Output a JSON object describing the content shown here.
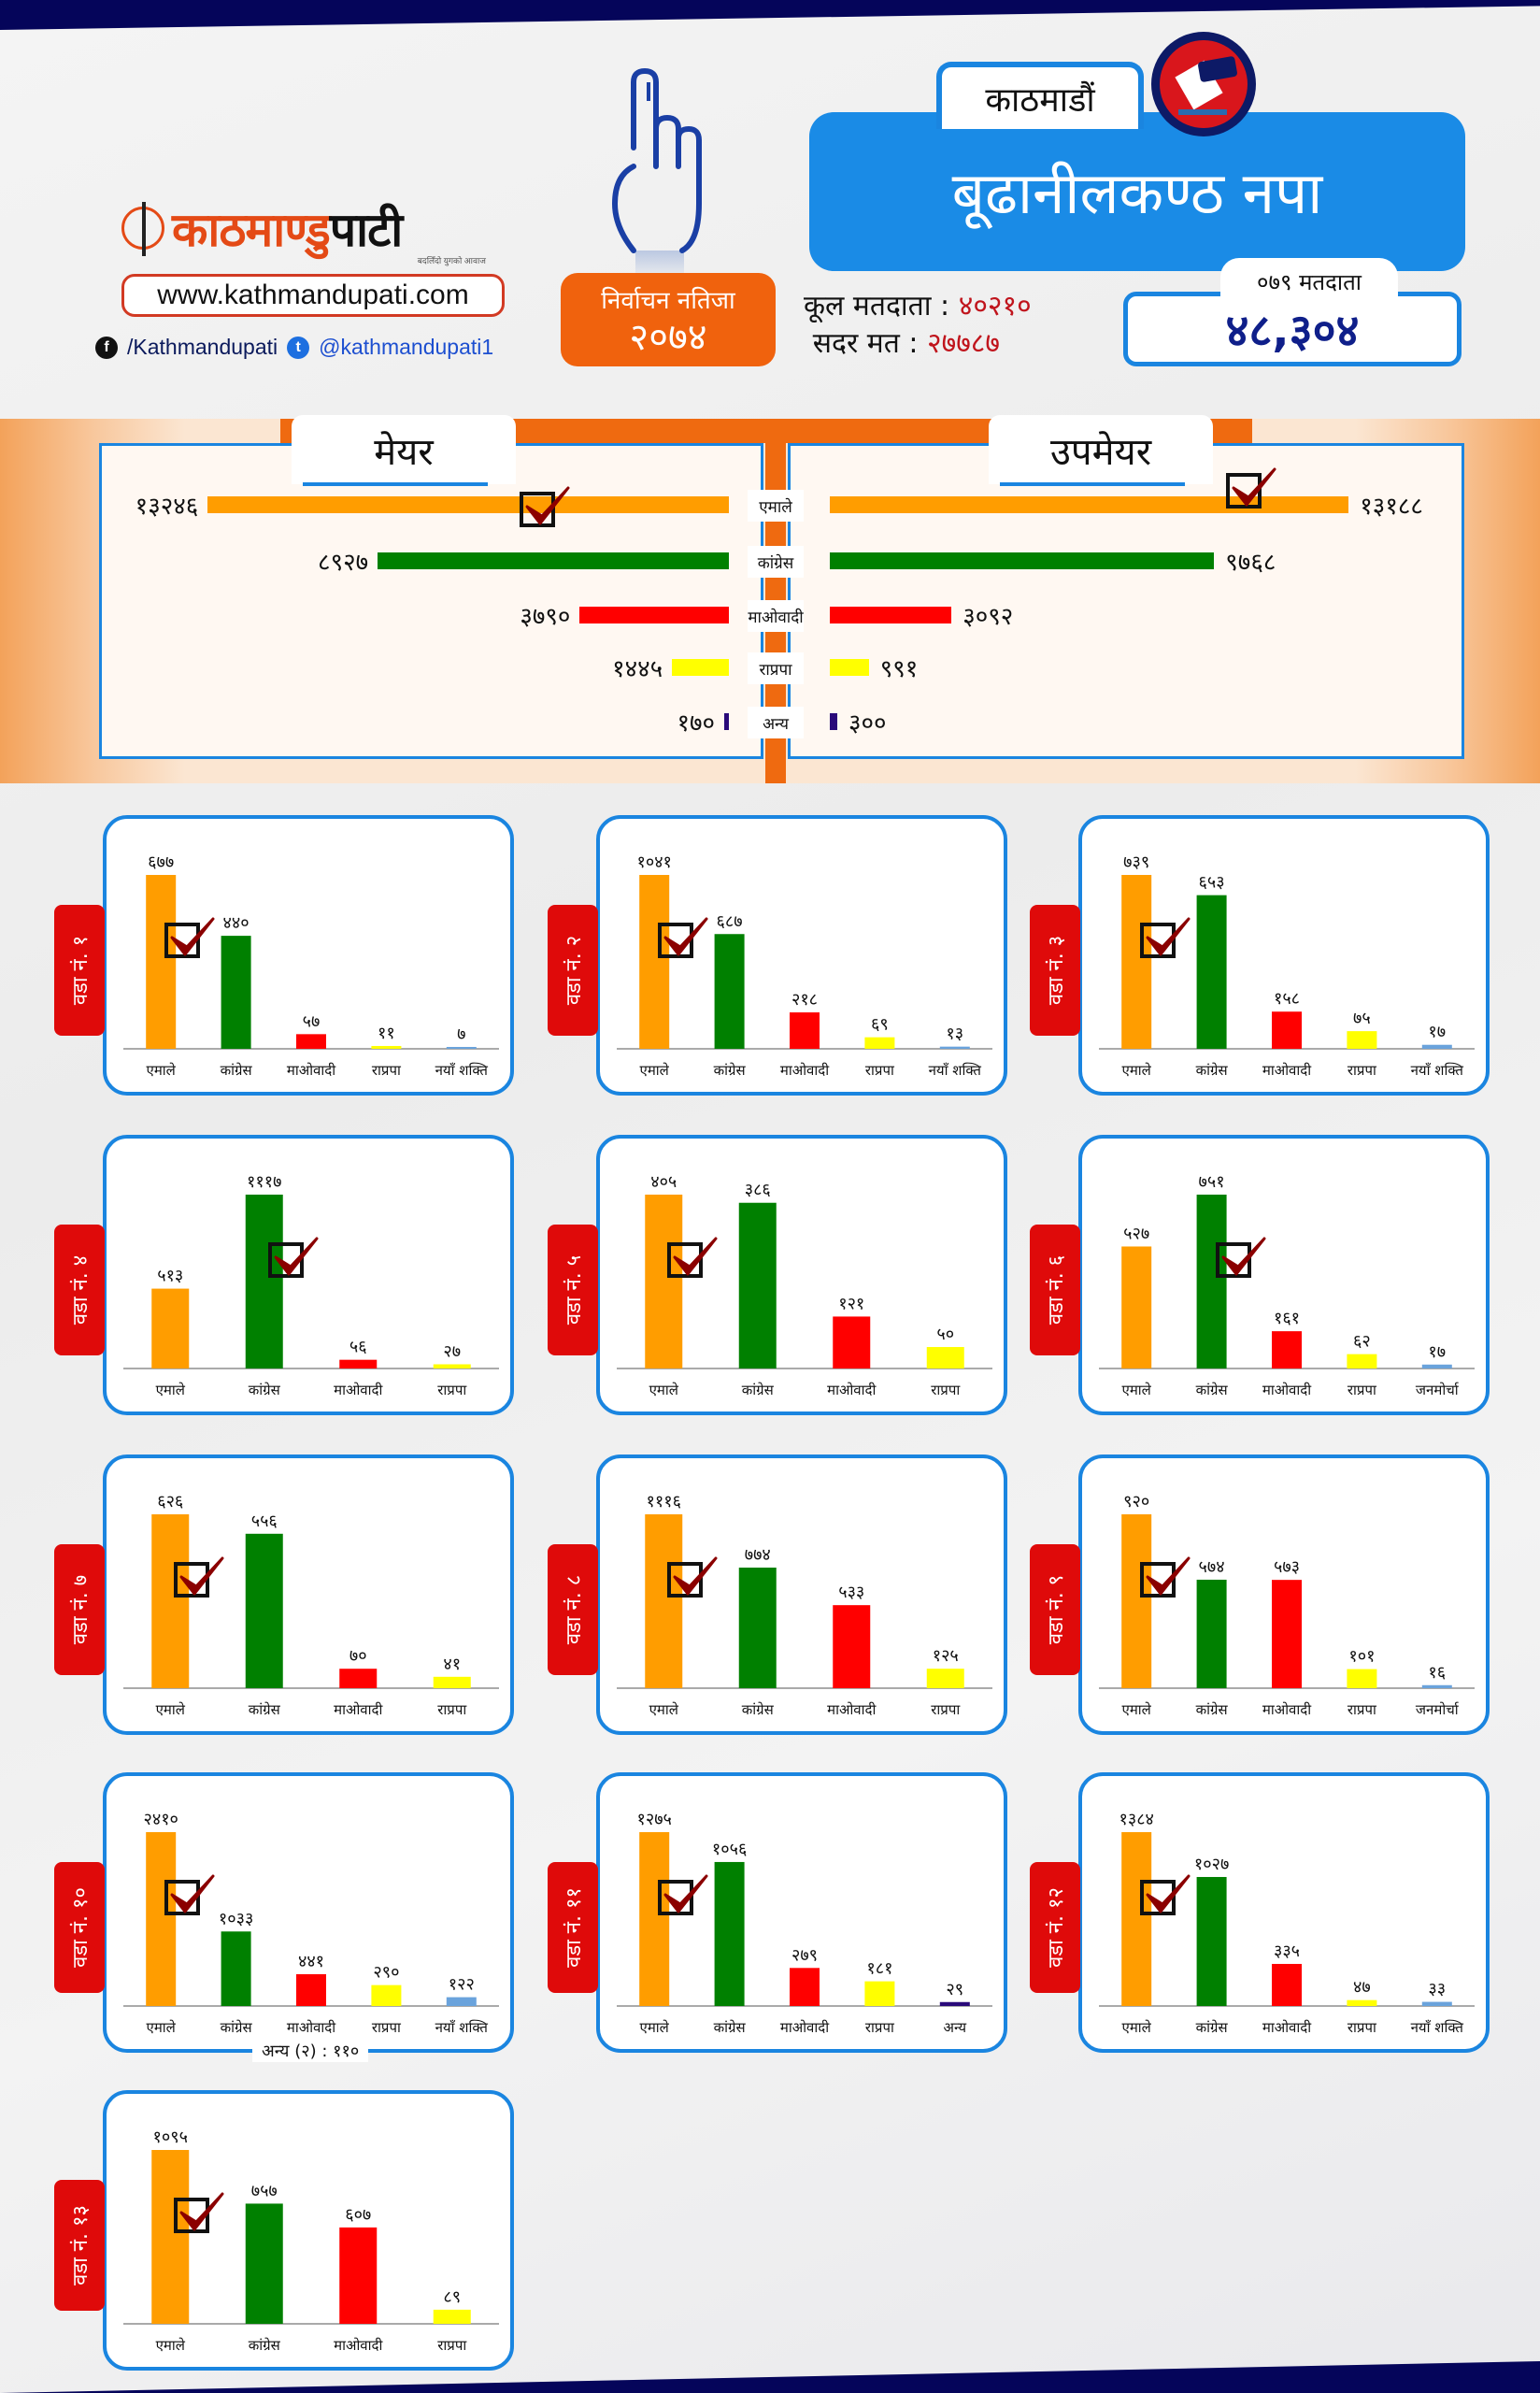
{
  "header": {
    "brand": {
      "name_part1": "काठमाण्डु",
      "name_part2": "पाटी",
      "tagline": "बदलिँदो युगको आवाज",
      "website": "www.kathmandupati.com"
    },
    "socials": {
      "facebook": "/Kathmandupati",
      "twitter": "@kathmandupati1"
    },
    "result_badge": {
      "line1": "निर्वाचन नतिजा",
      "line2": "२०७४"
    },
    "district": "काठमाडौं",
    "municipality": "बूढानीलकण्ठ नपा",
    "total_voters_label": "कूल मतदाता :",
    "total_voters_value": "४०२१०",
    "valid_votes_label": "सदर मत :",
    "valid_votes_value": "२७७८७",
    "voters_079_label": "०७९ मतदाता",
    "voters_079_value": "४८,३०४"
  },
  "colors": {
    "एमाले": "#ff9d00",
    "कांग्रेस": "#008000",
    "माओवादी": "#ff0000",
    "राप्रपा": "#ffff00",
    "नयाँ शक्ति": "#6aa3dc",
    "जनमोर्चा": "#6aa3dc",
    "अन्य": "#2a0a7a",
    "accent_blue": "#1a85e0",
    "accent_orange": "#ef6a10",
    "ward_tag_red": "#df0a0a",
    "check_red": "#8b0000"
  },
  "chart_data": [
    {
      "type": "bar",
      "title": "मेयर",
      "orientation": "horizontal",
      "categories": [
        "एमाले",
        "कांग्रेस",
        "माओवादी",
        "राप्रपा",
        "अन्य"
      ],
      "values": [
        13246,
        8927,
        3790,
        1445,
        170
      ],
      "labels": [
        "१३२४६",
        "८९२७",
        "३७९०",
        "१४४५",
        "१७०"
      ],
      "winner": "एमाले"
    },
    {
      "type": "bar",
      "title": "उपमेयर",
      "orientation": "horizontal",
      "categories": [
        "एमाले",
        "कांग्रेस",
        "माओवादी",
        "राप्रपा",
        "अन्य"
      ],
      "values": [
        13188,
        9768,
        3092,
        991,
        300
      ],
      "labels": [
        "१३१८८",
        "९७६८",
        "३०९२",
        "९९१",
        "३००"
      ],
      "winner": "एमाले"
    },
    {
      "type": "bar",
      "title": "वडा नं. १",
      "categories": [
        "एमाले",
        "कांग्रेस",
        "माओवादी",
        "राप्रपा",
        "नयाँ शक्ति"
      ],
      "values": [
        677,
        440,
        57,
        11,
        7
      ],
      "labels": [
        "६७७",
        "४४०",
        "५७",
        "११",
        "७"
      ],
      "winner": "एमाले"
    },
    {
      "type": "bar",
      "title": "वडा नं. २",
      "categories": [
        "एमाले",
        "कांग्रेस",
        "माओवादी",
        "राप्रपा",
        "नयाँ शक्ति"
      ],
      "values": [
        1041,
        687,
        218,
        69,
        13
      ],
      "labels": [
        "१०४१",
        "६८७",
        "२१८",
        "६९",
        "१३"
      ],
      "winner": "एमाले"
    },
    {
      "type": "bar",
      "title": "वडा नं. ३",
      "categories": [
        "एमाले",
        "कांग्रेस",
        "माओवादी",
        "राप्रपा",
        "नयाँ शक्ति"
      ],
      "values": [
        739,
        653,
        158,
        75,
        17
      ],
      "labels": [
        "७३९",
        "६५३",
        "१५८",
        "७५",
        "१७"
      ],
      "winner": "एमाले"
    },
    {
      "type": "bar",
      "title": "वडा नं. ४",
      "categories": [
        "एमाले",
        "कांग्रेस",
        "माओवादी",
        "राप्रपा"
      ],
      "values": [
        513,
        1117,
        56,
        27
      ],
      "labels": [
        "५१३",
        "१११७",
        "५६",
        "२७"
      ],
      "winner": "कांग्रेस"
    },
    {
      "type": "bar",
      "title": "वडा नं. ५",
      "categories": [
        "एमाले",
        "कांग्रेस",
        "माओवादी",
        "राप्रपा"
      ],
      "values": [
        405,
        386,
        121,
        50
      ],
      "labels": [
        "४०५",
        "३८६",
        "१२१",
        "५०"
      ],
      "winner": "एमाले"
    },
    {
      "type": "bar",
      "title": "वडा नं. ६",
      "categories": [
        "एमाले",
        "कांग्रेस",
        "माओवादी",
        "राप्रपा",
        "जनमोर्चा"
      ],
      "values": [
        527,
        751,
        161,
        62,
        17
      ],
      "labels": [
        "५२७",
        "७५१",
        "१६१",
        "६२",
        "१७"
      ],
      "winner": "कांग्रेस"
    },
    {
      "type": "bar",
      "title": "वडा नं. ७",
      "categories": [
        "एमाले",
        "कांग्रेस",
        "माओवादी",
        "राप्रपा"
      ],
      "values": [
        626,
        556,
        70,
        41
      ],
      "labels": [
        "६२६",
        "५५६",
        "७०",
        "४१"
      ],
      "winner": "एमाले"
    },
    {
      "type": "bar",
      "title": "वडा नं. ८",
      "categories": [
        "एमाले",
        "कांग्रेस",
        "माओवादी",
        "राप्रपा"
      ],
      "values": [
        1116,
        774,
        533,
        125
      ],
      "labels": [
        "१११६",
        "७७४",
        "५३३",
        "१२५"
      ],
      "winner": "एमाले"
    },
    {
      "type": "bar",
      "title": "वडा नं. ९",
      "categories": [
        "एमाले",
        "कांग्रेस",
        "माओवादी",
        "राप्रपा",
        "जनमोर्चा"
      ],
      "values": [
        920,
        574,
        573,
        101,
        16
      ],
      "labels": [
        "९२०",
        "५७४",
        "५७३",
        "१०१",
        "१६"
      ],
      "winner": "एमाले"
    },
    {
      "type": "bar",
      "title": "वडा नं. १०",
      "categories": [
        "एमाले",
        "कांग्रेस",
        "माओवादी",
        "राप्रपा",
        "नयाँ शक्ति"
      ],
      "values": [
        2410,
        1033,
        441,
        290,
        122
      ],
      "labels": [
        "२४१०",
        "१०३३",
        "४४१",
        "२९०",
        "१२२"
      ],
      "winner": "एमाले",
      "note": "अन्य (२) : ११०"
    },
    {
      "type": "bar",
      "title": "वडा नं. ११",
      "categories": [
        "एमाले",
        "कांग्रेस",
        "माओवादी",
        "राप्रपा",
        "अन्य"
      ],
      "values": [
        1275,
        1056,
        279,
        181,
        29
      ],
      "labels": [
        "१२७५",
        "१०५६",
        "२७९",
        "१८१",
        "२९"
      ],
      "winner": "एमाले"
    },
    {
      "type": "bar",
      "title": "वडा नं. १२",
      "categories": [
        "एमाले",
        "कांग्रेस",
        "माओवादी",
        "राप्रपा",
        "नयाँ शक्ति"
      ],
      "values": [
        1384,
        1027,
        335,
        47,
        33
      ],
      "labels": [
        "१३८४",
        "१०२७",
        "३३५",
        "४७",
        "३३"
      ],
      "winner": "एमाले"
    },
    {
      "type": "bar",
      "title": "वडा नं. १३",
      "categories": [
        "एमाले",
        "कांग्रेस",
        "माओवादी",
        "राप्रपा"
      ],
      "values": [
        1095,
        757,
        607,
        89
      ],
      "labels": [
        "१०९५",
        "७५७",
        "६०७",
        "८९"
      ],
      "winner": "एमाले"
    }
  ]
}
